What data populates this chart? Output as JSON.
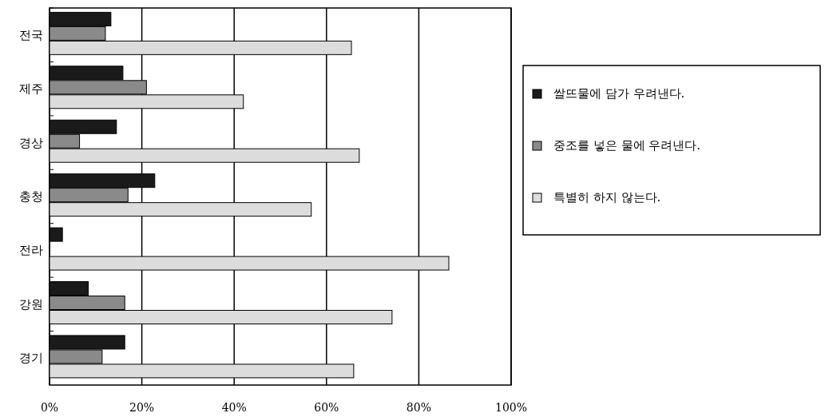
{
  "chart_data": {
    "type": "bar",
    "orientation": "horizontal",
    "categories": [
      "전국",
      "제주",
      "경상",
      "충청",
      "전라",
      "강원",
      "경기"
    ],
    "series": [
      {
        "name": "쌀뜨물에 담가 우려낸다.",
        "color": "#1a1a1a",
        "values": [
          13.3,
          15.9,
          14.5,
          22.8,
          2.8,
          8.4,
          16.3
        ]
      },
      {
        "name": "중조를 넣은 물에 우려낸다.",
        "color": "#8a8a8a",
        "values": [
          12.1,
          21.0,
          6.5,
          17.0,
          0,
          16.3,
          11.4
        ]
      },
      {
        "name": "특별히 하지 않는다.",
        "color": "#dcdcdc",
        "values": [
          65.4,
          42.0,
          67.1,
          56.7,
          86.5,
          74.2,
          65.9
        ]
      }
    ],
    "xlim": [
      0,
      100
    ],
    "xticks": [
      {
        "value": 0,
        "label": "0%"
      },
      {
        "value": 20,
        "label": "20%"
      },
      {
        "value": 40,
        "label": "40%"
      },
      {
        "value": 60,
        "label": "60%"
      },
      {
        "value": 80,
        "label": "80%"
      },
      {
        "value": 100,
        "label": "100%"
      }
    ],
    "grid": "x",
    "legend": "right"
  }
}
